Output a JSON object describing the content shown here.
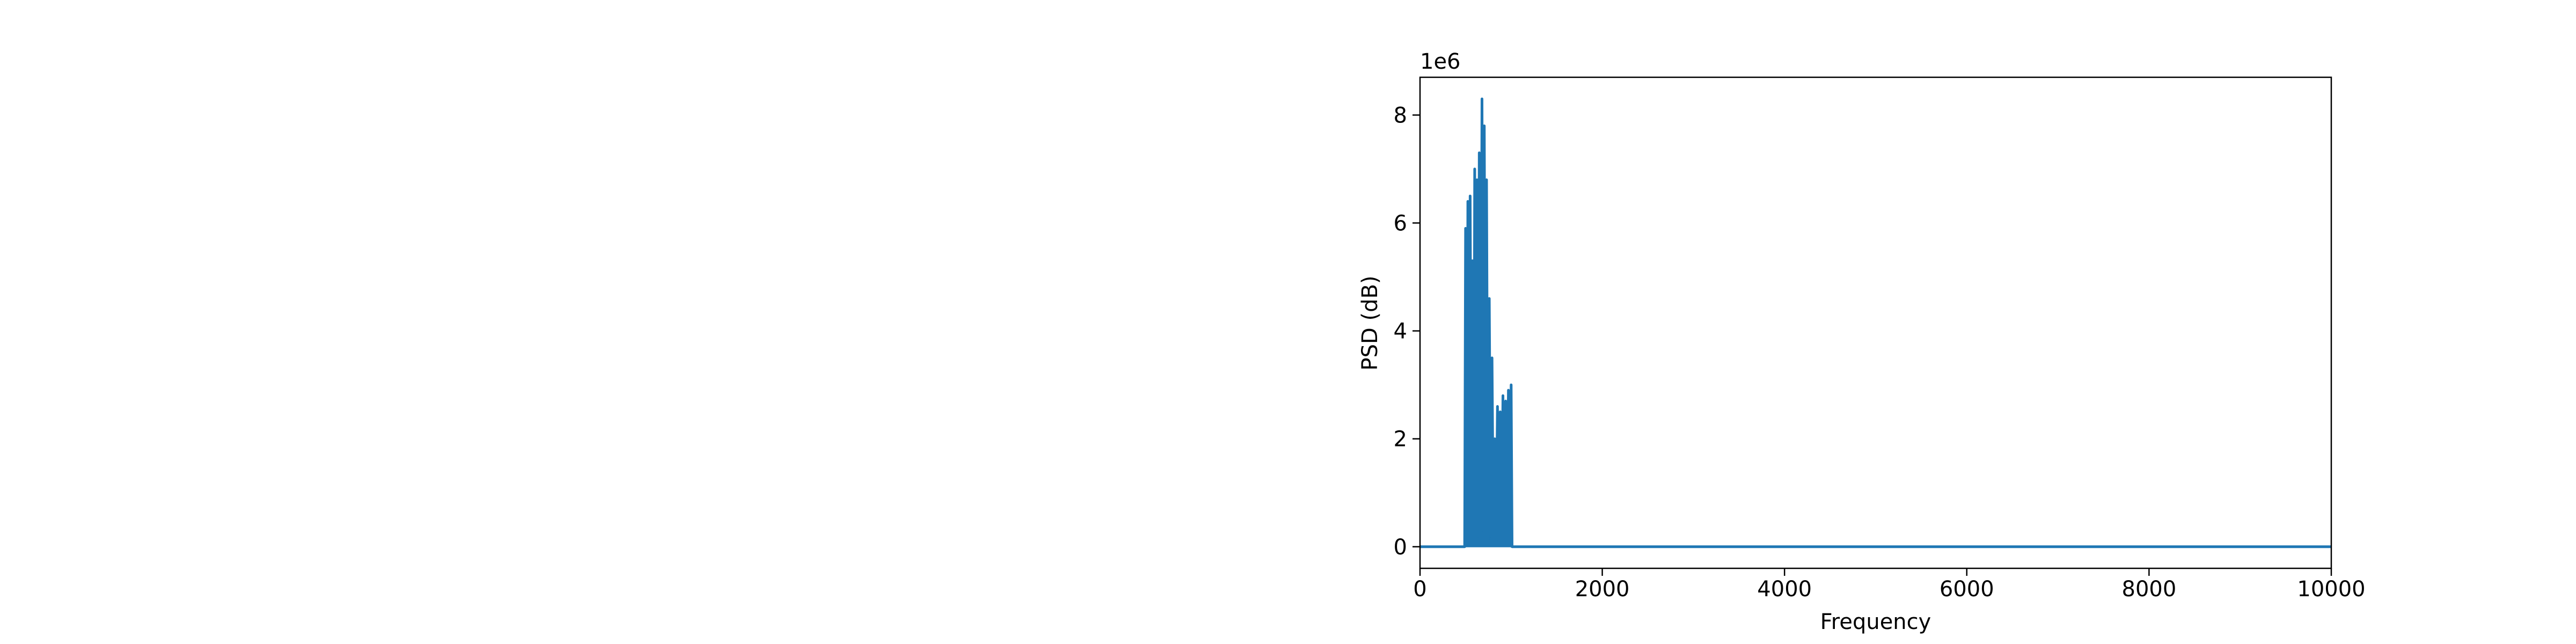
{
  "chart_data": {
    "type": "line",
    "title": "",
    "xlabel": "Frequency",
    "ylabel": "PSD (dB)",
    "y_offset_label": "1e6",
    "y_multiplier": 1000000,
    "xlim": [
      0,
      10000
    ],
    "ylim": [
      -0.4,
      8.7
    ],
    "x_ticks": [
      0,
      2000,
      4000,
      6000,
      8000,
      10000
    ],
    "x_tick_labels": [
      "0",
      "2000",
      "4000",
      "6000",
      "8000",
      "10000"
    ],
    "y_ticks": [
      0,
      2,
      4,
      6,
      8
    ],
    "y_tick_labels": [
      "0",
      "2",
      "4",
      "6",
      "8"
    ],
    "grid": false,
    "legend": "none",
    "series": [
      {
        "color": "#1f77b4",
        "band": [
          500,
          1000
        ],
        "points": [
          [
            0,
            0
          ],
          [
            490,
            0
          ],
          [
            500,
            5.9
          ],
          [
            515,
            0.1
          ],
          [
            525,
            6.4
          ],
          [
            540,
            0.05
          ],
          [
            550,
            6.5
          ],
          [
            565,
            0.1
          ],
          [
            575,
            5.3
          ],
          [
            590,
            0.05
          ],
          [
            600,
            7.0
          ],
          [
            615,
            0.1
          ],
          [
            625,
            6.8
          ],
          [
            640,
            0.2
          ],
          [
            650,
            7.3
          ],
          [
            665,
            0.1
          ],
          [
            680,
            8.3
          ],
          [
            695,
            0.3
          ],
          [
            705,
            7.8
          ],
          [
            720,
            0.1
          ],
          [
            730,
            6.8
          ],
          [
            745,
            0.1
          ],
          [
            760,
            4.6
          ],
          [
            775,
            0.2
          ],
          [
            790,
            3.5
          ],
          [
            805,
            0.1
          ],
          [
            820,
            2.0
          ],
          [
            835,
            0.1
          ],
          [
            850,
            2.6
          ],
          [
            865,
            0.1
          ],
          [
            880,
            2.5
          ],
          [
            895,
            0.1
          ],
          [
            910,
            2.8
          ],
          [
            925,
            0.05
          ],
          [
            940,
            2.7
          ],
          [
            955,
            0.1
          ],
          [
            970,
            2.9
          ],
          [
            985,
            0.05
          ],
          [
            1000,
            3.0
          ],
          [
            1010,
            0
          ],
          [
            10000,
            0
          ]
        ]
      }
    ]
  }
}
